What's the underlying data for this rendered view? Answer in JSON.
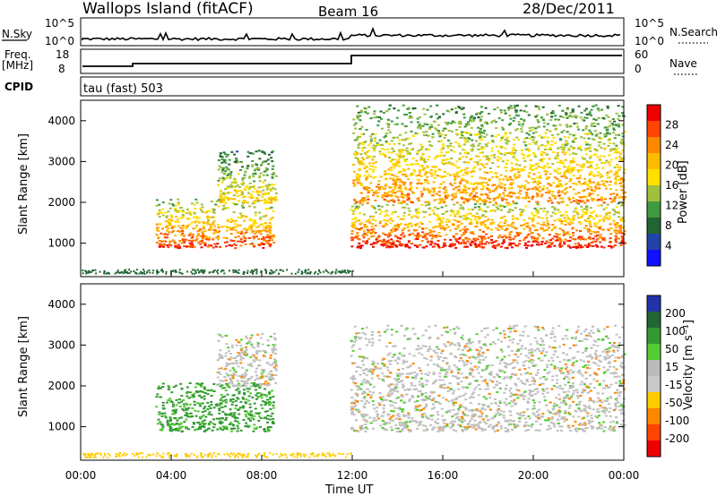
{
  "header": {
    "station": "Wallops Island (fitACF)",
    "beam": "Beam 16",
    "date": "28/Dec/2011"
  },
  "top_panels": {
    "nsky_label": "N.Sky",
    "nsky_ticks": [
      "10^5",
      "10^0"
    ],
    "nsearch_label": "N.Search",
    "nsearch_ticks": [
      "10^5",
      "10^0"
    ],
    "freq_label_line1": "Freq.",
    "freq_label_line2": "[MHz]",
    "freq_ticks": [
      "18",
      "8"
    ],
    "nave_label": "Nave",
    "nave_ticks": [
      "60",
      "0"
    ],
    "cpid_label": "CPID",
    "cpid_text": "tau (fast) 503"
  },
  "colors": {
    "power_scale": [
      "#ee0000",
      "#ff4400",
      "#ff8800",
      "#ffbb00",
      "#ffe000",
      "#a0c040",
      "#409a40",
      "#226633",
      "#2244aa",
      "#1111ff"
    ],
    "velocity_scale": [
      "#2233aa",
      "#226633",
      "#339933",
      "#55cc33",
      "#bbbbbb",
      "#c9c9c9",
      "#ffcc00",
      "#ff8800",
      "#ff4400",
      "#ee0000"
    ],
    "velocity_fill": "#c0c0c0",
    "power_fill": "#ee2200"
  },
  "chart_data": [
    {
      "type": "heatmap",
      "title": "Power",
      "colorbar_label": "Power [dB]",
      "colorbar_ticks": [
        "28",
        "24",
        "20",
        "16",
        "12",
        "8",
        "4"
      ],
      "ylabel": "Slant Range [km]",
      "yticks": [
        "4000",
        "3000",
        "2000",
        "1000"
      ],
      "ylim": [
        180,
        4500
      ],
      "xlim_hours": [
        0,
        24
      ],
      "echo_regions": [
        {
          "t_start": 3.3,
          "t_end": 8.5,
          "r_low": 900,
          "r_high": 2100,
          "peak_dB": 28
        },
        {
          "t_start": 6.0,
          "t_end": 8.6,
          "r_low": 2000,
          "r_high": 3300,
          "peak_dB": 20
        },
        {
          "t_start": 11.9,
          "t_end": 24.0,
          "r_low": 900,
          "r_high": 2000,
          "peak_dB": 30
        },
        {
          "t_start": 12.0,
          "t_end": 24.0,
          "r_low": 2000,
          "r_high": 4400,
          "peak_dB": 24
        }
      ]
    },
    {
      "type": "heatmap",
      "title": "Velocity",
      "colorbar_label": "Velocity [m s⁻¹]",
      "colorbar_ticks": [
        "200",
        "100",
        "50",
        "15",
        "-15",
        "-50",
        "-100",
        "-200"
      ],
      "ylabel": "Slant Range [km]",
      "yticks": [
        "4000",
        "3000",
        "2000",
        "1000"
      ],
      "ylim": [
        180,
        4500
      ],
      "xlabel": "Time UT",
      "xticks": [
        "00:00",
        "04:00",
        "08:00",
        "12:00",
        "16:00",
        "20:00",
        "00:00"
      ],
      "xlim_hours": [
        0,
        24
      ],
      "echo_regions": [
        {
          "t_start": 3.3,
          "t_end": 8.5,
          "r_low": 900,
          "r_high": 2100,
          "velocity": 60
        },
        {
          "t_start": 6.0,
          "t_end": 8.6,
          "r_low": 2000,
          "r_high": 3300,
          "velocity": 0
        },
        {
          "t_start": 11.9,
          "t_end": 24.0,
          "r_low": 900,
          "r_high": 3500,
          "velocity": 0
        }
      ]
    }
  ]
}
